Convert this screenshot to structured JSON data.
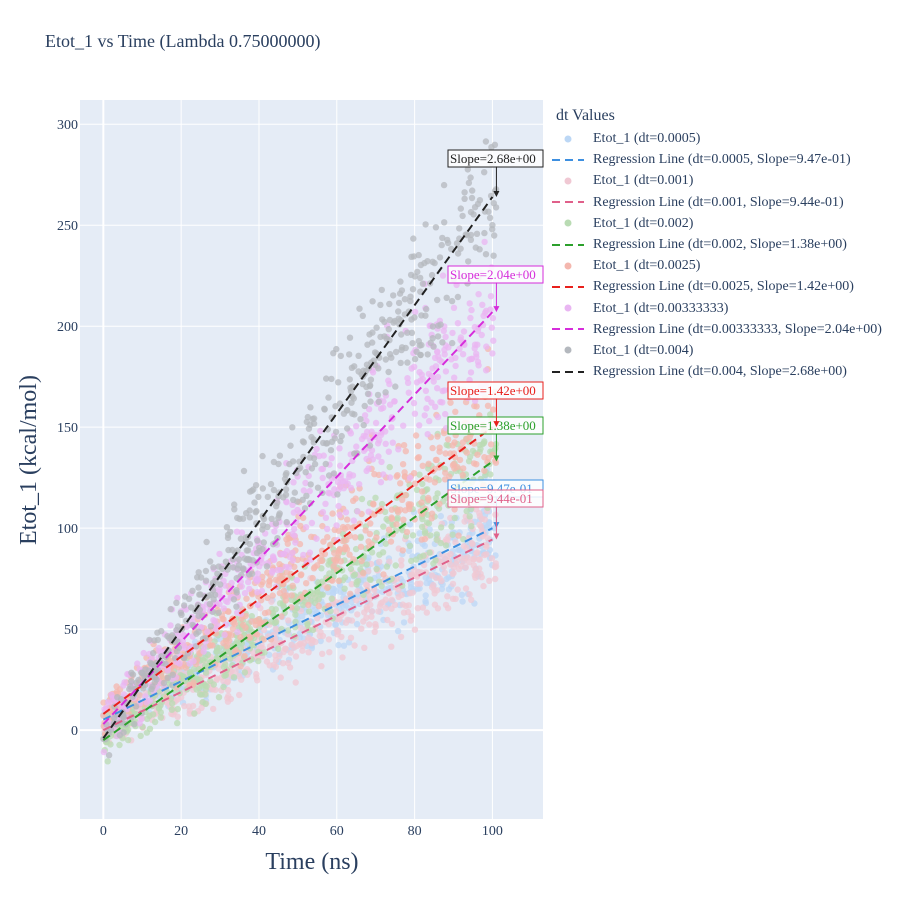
{
  "title": "Etot_1 vs Time (Lambda 0.75000000)",
  "legend": {
    "title": "dt Values",
    "items": [
      {
        "label": "Etot_1 (dt=0.0005)",
        "kind": "marker",
        "color": "#bcd7f5"
      },
      {
        "label": "Regression Line (dt=0.0005, Slope=9.47e-01)",
        "kind": "line",
        "color": "#3d8fe0"
      },
      {
        "label": "Etot_1 (dt=0.001)",
        "kind": "marker",
        "color": "#f0c8d3"
      },
      {
        "label": "Regression Line (dt=0.001, Slope=9.44e-01)",
        "kind": "line",
        "color": "#e0608a"
      },
      {
        "label": "Etot_1 (dt=0.002)",
        "kind": "marker",
        "color": "#b9dbb3"
      },
      {
        "label": "Regression Line (dt=0.002, Slope=1.38e+00)",
        "kind": "line",
        "color": "#2ca02c"
      },
      {
        "label": "Etot_1 (dt=0.0025)",
        "kind": "marker",
        "color": "#f4b7ae"
      },
      {
        "label": "Regression Line (dt=0.0025, Slope=1.42e+00)",
        "kind": "line",
        "color": "#e8201c"
      },
      {
        "label": "Etot_1 (dt=0.00333333)",
        "kind": "marker",
        "color": "#e9b6f2"
      },
      {
        "label": "Regression Line (dt=0.00333333, Slope=2.04e+00)",
        "kind": "line",
        "color": "#d62ddb"
      },
      {
        "label": "Etot_1 (dt=0.004)",
        "kind": "marker",
        "color": "#b4b8be"
      },
      {
        "label": "Regression Line (dt=0.004, Slope=2.68e+00)",
        "kind": "line",
        "color": "#222222"
      }
    ]
  },
  "chart_data": {
    "type": "scatter",
    "title": "Etot_1 vs Time (Lambda 0.75000000)",
    "xlabel": "Time (ns)",
    "ylabel": "Etot_1 (kcal/mol)",
    "xlim": [
      -6,
      113
    ],
    "ylim": [
      -44,
      312
    ],
    "xticks": [
      0,
      20,
      40,
      60,
      80,
      100
    ],
    "yticks": [
      0,
      50,
      100,
      150,
      200,
      250,
      300
    ],
    "grid": true,
    "legend_placement": "right",
    "background": "#e5ecf6",
    "series": [
      {
        "name": "Etot_1 (dt=0.0005)",
        "dt": "0.0005",
        "marker_color": "#bcd7f5",
        "line_color": "#3d8fe0",
        "line_x": [
          0,
          100
        ],
        "line_y": [
          5.2,
          100
        ],
        "spread": 9,
        "annotation": "Slope=9.47e-01"
      },
      {
        "name": "Etot_1 (dt=0.001)",
        "dt": "0.001",
        "marker_color": "#f0c8d3",
        "line_color": "#e0608a",
        "line_x": [
          0,
          100
        ],
        "line_y": [
          0,
          94.4
        ],
        "spread": 10,
        "annotation": "Slope=9.44e-01"
      },
      {
        "name": "Etot_1 (dt=0.002)",
        "dt": "0.002",
        "marker_color": "#b9dbb3",
        "line_color": "#2ca02c",
        "line_x": [
          0,
          100
        ],
        "line_y": [
          -5,
          133
        ],
        "spread": 10,
        "annotation": "Slope=1.38e+00"
      },
      {
        "name": "Etot_1 (dt=0.0025)",
        "dt": "0.0025",
        "marker_color": "#f4b7ae",
        "line_color": "#e8201c",
        "line_x": [
          0,
          100
        ],
        "line_y": [
          8,
          150
        ],
        "spread": 12,
        "annotation": "Slope=1.42e+00"
      },
      {
        "name": "Etot_1 (dt=0.00333333)",
        "dt": "0.00333333",
        "marker_color": "#e9b6f2",
        "line_color": "#d62ddb",
        "line_x": [
          0,
          100
        ],
        "line_y": [
          3,
          207
        ],
        "spread": 14,
        "annotation": "Slope=2.04e+00"
      },
      {
        "name": "Etot_1 (dt=0.004)",
        "dt": "0.004",
        "marker_color": "#b4b8be",
        "line_color": "#222222",
        "line_x": [
          0,
          100
        ],
        "line_y": [
          -4,
          264
        ],
        "spread": 14,
        "annotation": "Slope=2.68e+00"
      }
    ]
  }
}
